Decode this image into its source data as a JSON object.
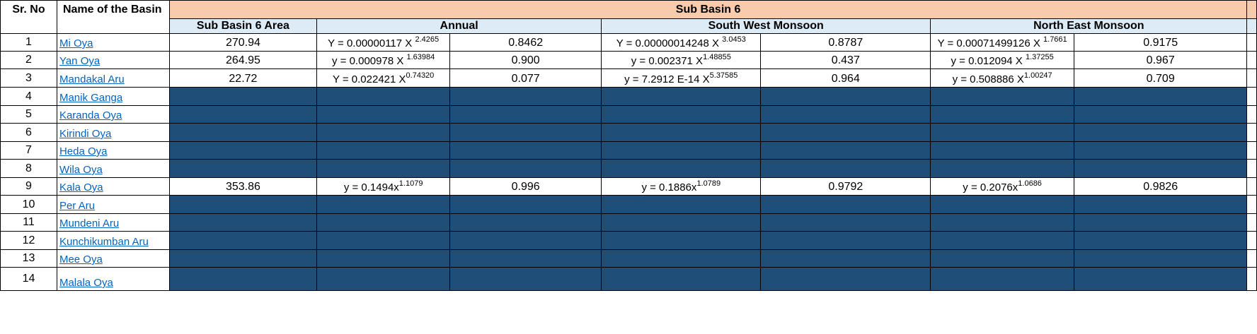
{
  "headers": {
    "sr_no": "Sr. No",
    "name_of_basin": "Name of the Basin",
    "sub_basin": "Sub Basin 6",
    "area": "Sub Basin 6 Area",
    "annual": "Annual",
    "sw_monsoon": "South West Monsoon",
    "ne_monsoon": "North East Monsoon"
  },
  "rows": [
    {
      "sr": "1",
      "name": "Mi Oya",
      "filled": true,
      "area": "270.94",
      "annual_eq": {
        "base": "Y = 0.00000117 X ",
        "exp": "2.4265"
      },
      "annual_r": "0.8462",
      "sw_eq": {
        "base": "Y = 0.00000014248 X ",
        "exp": "3.0453"
      },
      "sw_r": "0.8787",
      "ne_eq": {
        "base": "Y = 0.00071499126 X ",
        "exp": "1.7661"
      },
      "ne_r": "0.9175"
    },
    {
      "sr": "2",
      "name": "Yan Oya",
      "filled": true,
      "area": "264.95",
      "annual_eq": {
        "base": "y = 0.000978 X ",
        "exp": "1.63984"
      },
      "annual_r": "0.900",
      "sw_eq": {
        "base": "y = 0.002371 X",
        "exp": "1.48855"
      },
      "sw_r": "0.437",
      "ne_eq": {
        "base": "y = 0.012094 X ",
        "exp": "1.37255"
      },
      "ne_r": "0.967"
    },
    {
      "sr": "3",
      "name": "Mandakal Aru",
      "filled": true,
      "area": "22.72",
      "annual_eq": {
        "base": "Y = 0.022421 X",
        "exp": "0.74320"
      },
      "annual_r": "0.077",
      "sw_eq": {
        "base": "y = 7.2912 E-14 X",
        "exp": "5.37585"
      },
      "sw_r": "0.964",
      "ne_eq": {
        "base": "y = 0.508886 X",
        "exp": "1.00247"
      },
      "ne_r": "0.709"
    },
    {
      "sr": "4",
      "name": "Manik Ganga",
      "filled": false
    },
    {
      "sr": "5",
      "name": "Karanda Oya",
      "filled": false
    },
    {
      "sr": "6",
      "name": "Kirindi Oya",
      "filled": false
    },
    {
      "sr": "7",
      "name": "Heda Oya",
      "filled": false
    },
    {
      "sr": "8",
      "name": "Wila Oya",
      "filled": false
    },
    {
      "sr": "9",
      "name": "Kala Oya",
      "filled": true,
      "area": "353.86",
      "annual_eq": {
        "base": "y = 0.1494x",
        "exp": "1.1079"
      },
      "annual_r": "0.996",
      "sw_eq": {
        "base": "y = 0.1886x",
        "exp": "1.0789"
      },
      "sw_r": "0.9792",
      "ne_eq": {
        "base": "y = 0.2076x",
        "exp": "1.0686"
      },
      "ne_r": "0.9826"
    },
    {
      "sr": "10",
      "name": "Per Aru",
      "filled": false
    },
    {
      "sr": "11",
      "name": "Mundeni Aru",
      "filled": false
    },
    {
      "sr": "12",
      "name": "Kunchikumban Aru",
      "filled": false
    },
    {
      "sr": "13",
      "name": "Mee Oya",
      "filled": false
    },
    {
      "sr": "14",
      "name": "Malala Oya",
      "filled": false
    }
  ],
  "colors": {
    "header_orange": "#f8cbad",
    "header_blue": "#ddebf7",
    "dark_fill": "#1f4e79",
    "link": "#0563c1"
  }
}
